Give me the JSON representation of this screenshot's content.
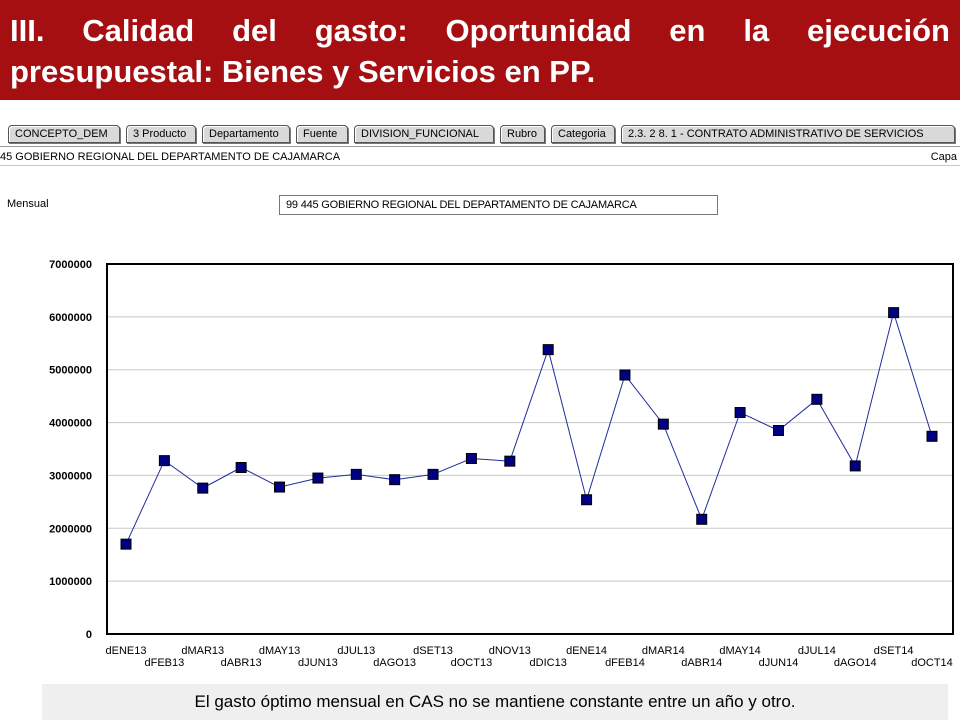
{
  "header": {
    "title": "III. Calidad del gasto: Oportunidad en la ejecución presupuestal: Bienes y Servicios en PP."
  },
  "tabs": [
    "CONCEPTO_DEM",
    "3 Producto",
    "Departamento",
    "Fuente",
    "DIVISION_FUNCIONAL",
    "Rubro",
    "Categoria",
    "2.3. 2 8. 1 - CONTRATO ADMINISTRATIVO DE SERVICIOS"
  ],
  "subheader": {
    "entity": "45 GOBIERNO REGIONAL DEL DEPARTAMENTO DE CAJAMARCA",
    "right_label": "Capa"
  },
  "panel": {
    "period_label": "Mensual",
    "filter_value": "99 445 GOBIERNO REGIONAL DEL DEPARTAMENTO DE CAJAMARCA"
  },
  "chart_data": {
    "type": "line",
    "title": "",
    "xlabel": "",
    "ylabel": "",
    "ylim": [
      0,
      7000000
    ],
    "yticks": [
      "0",
      "1000000",
      "2000000",
      "3000000",
      "4000000",
      "5000000",
      "6000000",
      "7000000"
    ],
    "grid": true,
    "legend": "none",
    "categories": [
      "dENE13",
      "dFEB13",
      "dMAR13",
      "dABR13",
      "dMAY13",
      "dJUN13",
      "dJUL13",
      "dAGO13",
      "dSET13",
      "dOCT13",
      "dNOV13",
      "dDIC13",
      "dENE14",
      "dFEB14",
      "dMAR14",
      "dABR14",
      "dMAY14",
      "dJUN14",
      "dJUL14",
      "dAGO14",
      "dSET14",
      "dOCT14"
    ],
    "series": [
      {
        "values": [
          1700000,
          3280000,
          2760000,
          3150000,
          2780000,
          2950000,
          3020000,
          2920000,
          3020000,
          3320000,
          3270000,
          5380000,
          2540000,
          4900000,
          3970000,
          2170000,
          4190000,
          3850000,
          4440000,
          3180000,
          6080000,
          3740000
        ]
      }
    ],
    "colors": {
      "line": "#1f2d9c",
      "marker": "#000080",
      "grid": "#c8c8c8"
    }
  },
  "footer": {
    "note": "El gasto óptimo mensual en CAS no se mantiene constante entre un año y otro."
  }
}
